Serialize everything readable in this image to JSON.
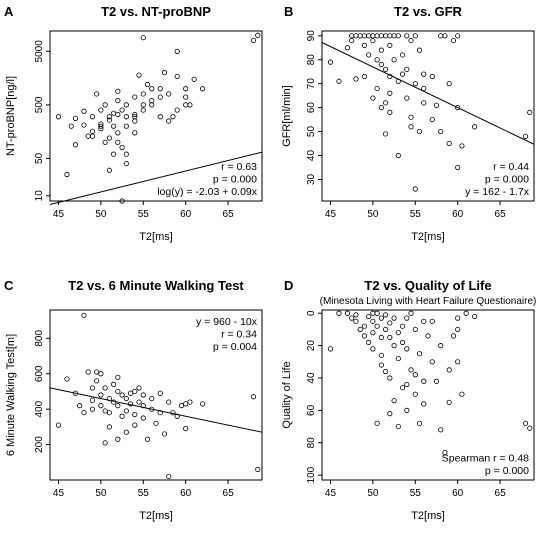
{
  "chart_data": [
    {
      "id": "A",
      "panel_letter": "A",
      "type": "scatter",
      "title": "T2 vs. NT-proBNP",
      "subtitle": "",
      "xlabel": "T2[ms]",
      "ylabel": "NT-proBNP[ng/l]",
      "y_scale": "log10",
      "xlim": [
        44,
        69
      ],
      "ylim": [
        8,
        12000
      ],
      "x_ticks": [
        45,
        50,
        55,
        60,
        65
      ],
      "y_ticks": [
        10,
        50,
        500,
        5000
      ],
      "y_tick_labels": [
        "10",
        "50",
        "500",
        "5000"
      ],
      "annotations": [
        "r = 0.63",
        "p = 0.000",
        "log(y) = -2.03 + 0.09x"
      ],
      "annotation_position": "bottom-right",
      "fit_line": {
        "intercept": -2.03,
        "slope": 0.09,
        "space": "ln"
      },
      "points": [
        [
          45,
          300
        ],
        [
          46,
          25
        ],
        [
          47,
          90
        ],
        [
          47,
          280
        ],
        [
          48,
          380
        ],
        [
          48,
          210
        ],
        [
          49,
          130
        ],
        [
          49,
          160
        ],
        [
          49,
          300
        ],
        [
          49.5,
          800
        ],
        [
          50,
          220
        ],
        [
          50,
          400
        ],
        [
          50,
          180
        ],
        [
          50.5,
          100
        ],
        [
          50.5,
          500
        ],
        [
          51,
          260
        ],
        [
          51,
          300
        ],
        [
          51,
          120
        ],
        [
          51,
          30
        ],
        [
          51.5,
          350
        ],
        [
          51.5,
          60
        ],
        [
          51.5,
          200
        ],
        [
          52,
          150
        ],
        [
          52,
          330
        ],
        [
          52,
          600
        ],
        [
          52,
          900
        ],
        [
          52,
          100
        ],
        [
          52.5,
          80
        ],
        [
          52.5,
          400
        ],
        [
          53,
          200
        ],
        [
          53,
          300
        ],
        [
          53,
          60
        ],
        [
          53,
          500
        ],
        [
          54,
          700
        ],
        [
          54,
          300
        ],
        [
          54,
          250
        ],
        [
          54,
          150
        ],
        [
          54.5,
          1800
        ],
        [
          55,
          400
        ],
        [
          55,
          800
        ],
        [
          55,
          500
        ],
        [
          55,
          9000
        ],
        [
          55.5,
          1200
        ],
        [
          56,
          600
        ],
        [
          56,
          1000
        ],
        [
          56,
          500
        ],
        [
          57,
          700
        ],
        [
          57,
          1000
        ],
        [
          57,
          300
        ],
        [
          57.5,
          2000
        ],
        [
          58,
          250
        ],
        [
          58,
          800
        ],
        [
          59,
          5000
        ],
        [
          59,
          1700
        ],
        [
          59,
          400
        ],
        [
          60,
          1000
        ],
        [
          60,
          700
        ],
        [
          60,
          500
        ],
        [
          60.5,
          500
        ],
        [
          61,
          1500
        ],
        [
          62,
          1000
        ],
        [
          68,
          8000
        ],
        [
          68.5,
          10000
        ],
        [
          50,
          200
        ],
        [
          48.5,
          130
        ],
        [
          52.5,
          8
        ],
        [
          53,
          40
        ],
        [
          54,
          330
        ],
        [
          46.5,
          200
        ],
        [
          58.5,
          300
        ]
      ]
    },
    {
      "id": "B",
      "panel_letter": "B",
      "type": "scatter",
      "title": "T2 vs. GFR",
      "subtitle": "",
      "xlabel": "T2[ms]",
      "ylabel": "GFR[ml/min]",
      "xlim": [
        44,
        69
      ],
      "ylim": [
        21,
        92
      ],
      "x_ticks": [
        45,
        50,
        55,
        60,
        65
      ],
      "y_ticks": [
        30,
        40,
        50,
        60,
        70,
        80,
        90
      ],
      "y_tick_labels": [
        "30",
        "40",
        "50",
        "60",
        "70",
        "80",
        "90"
      ],
      "annotations": [
        "r = 0.44",
        "p = 0.000",
        "y = 162 - 1.7x"
      ],
      "annotation_position": "bottom-right",
      "fit_line": {
        "intercept": 162,
        "slope": -1.7,
        "space": "linear"
      },
      "points": [
        [
          45,
          79
        ],
        [
          46,
          71
        ],
        [
          47,
          85
        ],
        [
          47.5,
          90
        ],
        [
          47.5,
          88
        ],
        [
          48,
          90
        ],
        [
          48,
          72
        ],
        [
          48.5,
          90
        ],
        [
          49,
          90
        ],
        [
          49,
          86
        ],
        [
          49.5,
          90
        ],
        [
          49.5,
          82
        ],
        [
          50,
          90
        ],
        [
          50,
          88
        ],
        [
          50,
          64
        ],
        [
          50.5,
          90
        ],
        [
          50.5,
          80
        ],
        [
          51,
          90
        ],
        [
          51,
          84
        ],
        [
          51,
          78
        ],
        [
          51,
          60
        ],
        [
          51.5,
          90
        ],
        [
          51.5,
          76
        ],
        [
          51.5,
          62
        ],
        [
          51.5,
          49
        ],
        [
          52,
          90
        ],
        [
          52,
          86
        ],
        [
          52,
          73
        ],
        [
          52,
          66
        ],
        [
          52.5,
          90
        ],
        [
          52.5,
          80
        ],
        [
          53,
          90
        ],
        [
          53,
          71
        ],
        [
          53,
          40
        ],
        [
          53.5,
          74
        ],
        [
          54,
          90
        ],
        [
          54,
          76
        ],
        [
          54,
          64
        ],
        [
          54.5,
          88
        ],
        [
          54.5,
          52
        ],
        [
          55,
          90
        ],
        [
          55,
          70
        ],
        [
          55,
          26
        ],
        [
          55.5,
          84
        ],
        [
          55.5,
          50
        ],
        [
          56,
          74
        ],
        [
          56,
          68
        ],
        [
          57,
          73
        ],
        [
          57,
          55
        ],
        [
          58,
          90
        ],
        [
          58,
          50
        ],
        [
          58.5,
          90
        ],
        [
          59,
          70
        ],
        [
          59,
          45
        ],
        [
          59.5,
          88
        ],
        [
          60,
          90
        ],
        [
          60,
          35
        ],
        [
          60,
          60
        ],
        [
          60.5,
          44
        ],
        [
          62,
          52
        ],
        [
          68,
          48
        ],
        [
          68.5,
          58
        ],
        [
          49,
          73
        ],
        [
          52,
          58
        ],
        [
          56,
          62
        ],
        [
          50.5,
          68
        ],
        [
          53.5,
          82
        ],
        [
          54.5,
          56
        ],
        [
          57.5,
          61
        ]
      ]
    },
    {
      "id": "C",
      "panel_letter": "C",
      "type": "scatter",
      "title": "T2 vs. 6 Minute Walking Test",
      "subtitle": "",
      "xlabel": "T2[ms]",
      "ylabel": "6 Minute Walking Test[m]",
      "xlim": [
        44,
        69
      ],
      "ylim": [
        0,
        960
      ],
      "x_ticks": [
        45,
        50,
        55,
        60,
        65
      ],
      "y_ticks": [
        200,
        400,
        600,
        800
      ],
      "y_tick_labels": [
        "200",
        "400",
        "600",
        "800"
      ],
      "annotations": [
        "y = 960 - 10x",
        "r = 0.34",
        "p = 0.004"
      ],
      "annotation_position": "top-right",
      "fit_line": {
        "intercept": 960,
        "slope": -10,
        "space": "linear"
      },
      "points": [
        [
          45,
          310
        ],
        [
          46,
          570
        ],
        [
          47,
          490
        ],
        [
          47.5,
          420
        ],
        [
          48,
          930
        ],
        [
          48,
          380
        ],
        [
          48.5,
          610
        ],
        [
          49,
          520
        ],
        [
          49,
          450
        ],
        [
          49,
          400
        ],
        [
          49.5,
          560
        ],
        [
          50,
          480
        ],
        [
          50,
          420
        ],
        [
          50,
          600
        ],
        [
          50.5,
          520
        ],
        [
          50.5,
          210
        ],
        [
          51,
          460
        ],
        [
          51,
          380
        ],
        [
          51,
          300
        ],
        [
          51.5,
          540
        ],
        [
          51.5,
          440
        ],
        [
          52,
          500
        ],
        [
          52,
          420
        ],
        [
          52,
          580
        ],
        [
          52,
          230
        ],
        [
          52.5,
          360
        ],
        [
          52.5,
          480
        ],
        [
          53,
          460
        ],
        [
          53,
          390
        ],
        [
          53,
          270
        ],
        [
          53.5,
          430
        ],
        [
          54,
          500
        ],
        [
          54,
          370
        ],
        [
          54,
          310
        ],
        [
          54.5,
          520
        ],
        [
          54.5,
          440
        ],
        [
          55,
          480
        ],
        [
          55,
          420
        ],
        [
          55,
          350
        ],
        [
          55.5,
          230
        ],
        [
          56,
          400
        ],
        [
          56,
          460
        ],
        [
          56.5,
          320
        ],
        [
          57,
          380
        ],
        [
          57,
          490
        ],
        [
          57.5,
          260
        ],
        [
          58,
          20
        ],
        [
          58,
          440
        ],
        [
          58.5,
          380
        ],
        [
          59,
          360
        ],
        [
          59.5,
          420
        ],
        [
          60,
          430
        ],
        [
          60,
          290
        ],
        [
          60.5,
          440
        ],
        [
          62,
          430
        ],
        [
          68,
          470
        ],
        [
          68.5,
          60
        ],
        [
          50.5,
          390
        ],
        [
          49.5,
          610
        ],
        [
          53.5,
          490
        ]
      ]
    },
    {
      "id": "D",
      "panel_letter": "D",
      "type": "scatter",
      "title": "T2 vs. Quality of Life",
      "subtitle": "(Minesota Living with Heart Failure Questionaire)",
      "xlabel": "T2[ms]",
      "ylabel": "Quality of Life",
      "y_reversed": true,
      "xlim": [
        44,
        69
      ],
      "ylim": [
        -2,
        103
      ],
      "x_ticks": [
        45,
        50,
        55,
        60,
        65
      ],
      "y_ticks": [
        0,
        20,
        40,
        60,
        80,
        100
      ],
      "y_tick_labels": [
        "0",
        "20",
        "40",
        "60",
        "80",
        "100"
      ],
      "annotations": [
        "Spearman r = 0.48",
        "p = 0.000"
      ],
      "annotation_position": "bottom-right",
      "fit_line": null,
      "points": [
        [
          45,
          22
        ],
        [
          46,
          0
        ],
        [
          47,
          0
        ],
        [
          47.5,
          3
        ],
        [
          48,
          5
        ],
        [
          48,
          1
        ],
        [
          48.5,
          10
        ],
        [
          49,
          14
        ],
        [
          49,
          8
        ],
        [
          49.5,
          2
        ],
        [
          50,
          0
        ],
        [
          50,
          5
        ],
        [
          50,
          12
        ],
        [
          50,
          22
        ],
        [
          50.5,
          0
        ],
        [
          50.5,
          8
        ],
        [
          50.5,
          68
        ],
        [
          51,
          3
        ],
        [
          51,
          15
        ],
        [
          51,
          26
        ],
        [
          51,
          32
        ],
        [
          51.5,
          1
        ],
        [
          51.5,
          10
        ],
        [
          51.5,
          36
        ],
        [
          52,
          6
        ],
        [
          52,
          15
        ],
        [
          52,
          40
        ],
        [
          52,
          62
        ],
        [
          52.5,
          3
        ],
        [
          52.5,
          20
        ],
        [
          52.5,
          54
        ],
        [
          53,
          12
        ],
        [
          53,
          28
        ],
        [
          53,
          70
        ],
        [
          53.5,
          8
        ],
        [
          53.5,
          18
        ],
        [
          54,
          3
        ],
        [
          54,
          22
        ],
        [
          54,
          44
        ],
        [
          54,
          60
        ],
        [
          54.5,
          0
        ],
        [
          54.5,
          35
        ],
        [
          55,
          10
        ],
        [
          55,
          38
        ],
        [
          55,
          50
        ],
        [
          55.5,
          25
        ],
        [
          55.5,
          68
        ],
        [
          56,
          5
        ],
        [
          56,
          42
        ],
        [
          56,
          56
        ],
        [
          57,
          30
        ],
        [
          57,
          5
        ],
        [
          57.5,
          42
        ],
        [
          58,
          20
        ],
        [
          58,
          72
        ],
        [
          58.5,
          86
        ],
        [
          59,
          35
        ],
        [
          59,
          55
        ],
        [
          59.5,
          14
        ],
        [
          60,
          10
        ],
        [
          60,
          30
        ],
        [
          60,
          3
        ],
        [
          60.5,
          50
        ],
        [
          61,
          0
        ],
        [
          62,
          2
        ],
        [
          68,
          68
        ],
        [
          68.5,
          71
        ],
        [
          49.5,
          18
        ],
        [
          53.5,
          46
        ],
        [
          56.5,
          14
        ]
      ]
    }
  ]
}
